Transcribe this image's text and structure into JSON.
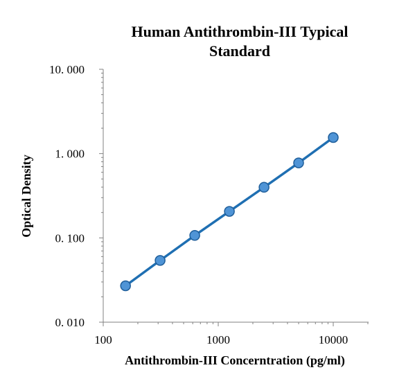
{
  "chart_data": {
    "type": "scatter",
    "title": [
      "Human Antithrombin-III Typical",
      "Standard"
    ],
    "xlabel": "Antithrombin-III Concerntration (pg/ml)",
    "ylabel": "Optical Density",
    "x_scale": "log",
    "y_scale": "log",
    "xlim": [
      100,
      20000
    ],
    "ylim": [
      0.01,
      10
    ],
    "x_ticks": [
      {
        "value": 100,
        "label": "100"
      },
      {
        "value": 1000,
        "label": "1000"
      },
      {
        "value": 10000,
        "label": "10000"
      }
    ],
    "y_ticks": [
      {
        "value": 10,
        "label": "10. 000"
      },
      {
        "value": 1,
        "label": "1. 000"
      },
      {
        "value": 0.1,
        "label": "0. 100"
      },
      {
        "value": 0.01,
        "label": "0. 010"
      }
    ],
    "grid": false,
    "legend": false,
    "colors": {
      "line": "#1f6fb2",
      "marker_fill": "#4f94d6",
      "marker_edge": "#1f5e9a",
      "axis": "#808080"
    },
    "series": [
      {
        "x": [
          156.25,
          312.5,
          625,
          1250,
          2500,
          5000,
          10000
        ],
        "y": [
          0.027,
          0.054,
          0.107,
          0.206,
          0.398,
          0.776,
          1.55
        ]
      }
    ]
  }
}
